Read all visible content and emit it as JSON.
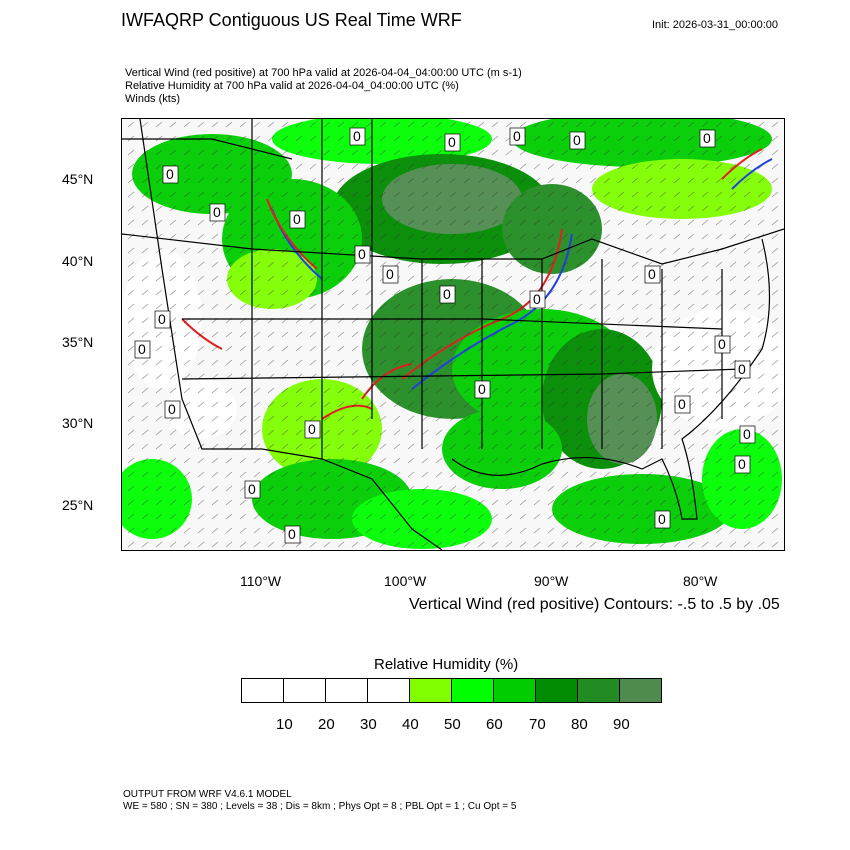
{
  "header": {
    "title": "IWFAQRP Contiguous US Real Time WRF",
    "init": "Init: 2026-03-31_00:00:00",
    "lines": [
      "Vertical Wind (red positive) at 700 hPa valid at 2026-04-04_04:00:00 UTC   (m s-1)",
      "Relative Humidity at 700 hPa valid at 2026-04-04_04:00:00 UTC   (%)",
      "Winds   (kts)"
    ]
  },
  "map": {
    "lat_labels": [
      "45°N",
      "40°N",
      "35°N",
      "30°N",
      "25°N"
    ],
    "lon_labels": [
      "110°W",
      "100°W",
      "90°W",
      "80°W"
    ],
    "contour_label": "0",
    "contour_note": "Vertical Wind (red positive) Contours: -.5 to .5 by .05",
    "colors": {
      "positive": "#e02020",
      "negative": "#2040e0",
      "wind_barbs": "#303030",
      "borders": "#000000"
    }
  },
  "colorbar": {
    "title": "Relative Humidity  (%)",
    "colors": [
      "#ffffff",
      "#ffffff",
      "#ffffff",
      "#ffffff",
      "#7fff00",
      "#00ff00",
      "#00cd00",
      "#008b00",
      "#228b22",
      "#4f8b4f"
    ],
    "labels": [
      "10",
      "20",
      "30",
      "40",
      "50",
      "60",
      "70",
      "80",
      "90"
    ]
  },
  "footer": {
    "line1": "OUTPUT FROM WRF V4.6.1 MODEL",
    "line2": "WE = 580 ; SN = 380 ; Levels = 38 ; Dis = 8km ; Phys Opt = 8 ; PBL Opt = 1 ; Cu Opt = 5"
  }
}
